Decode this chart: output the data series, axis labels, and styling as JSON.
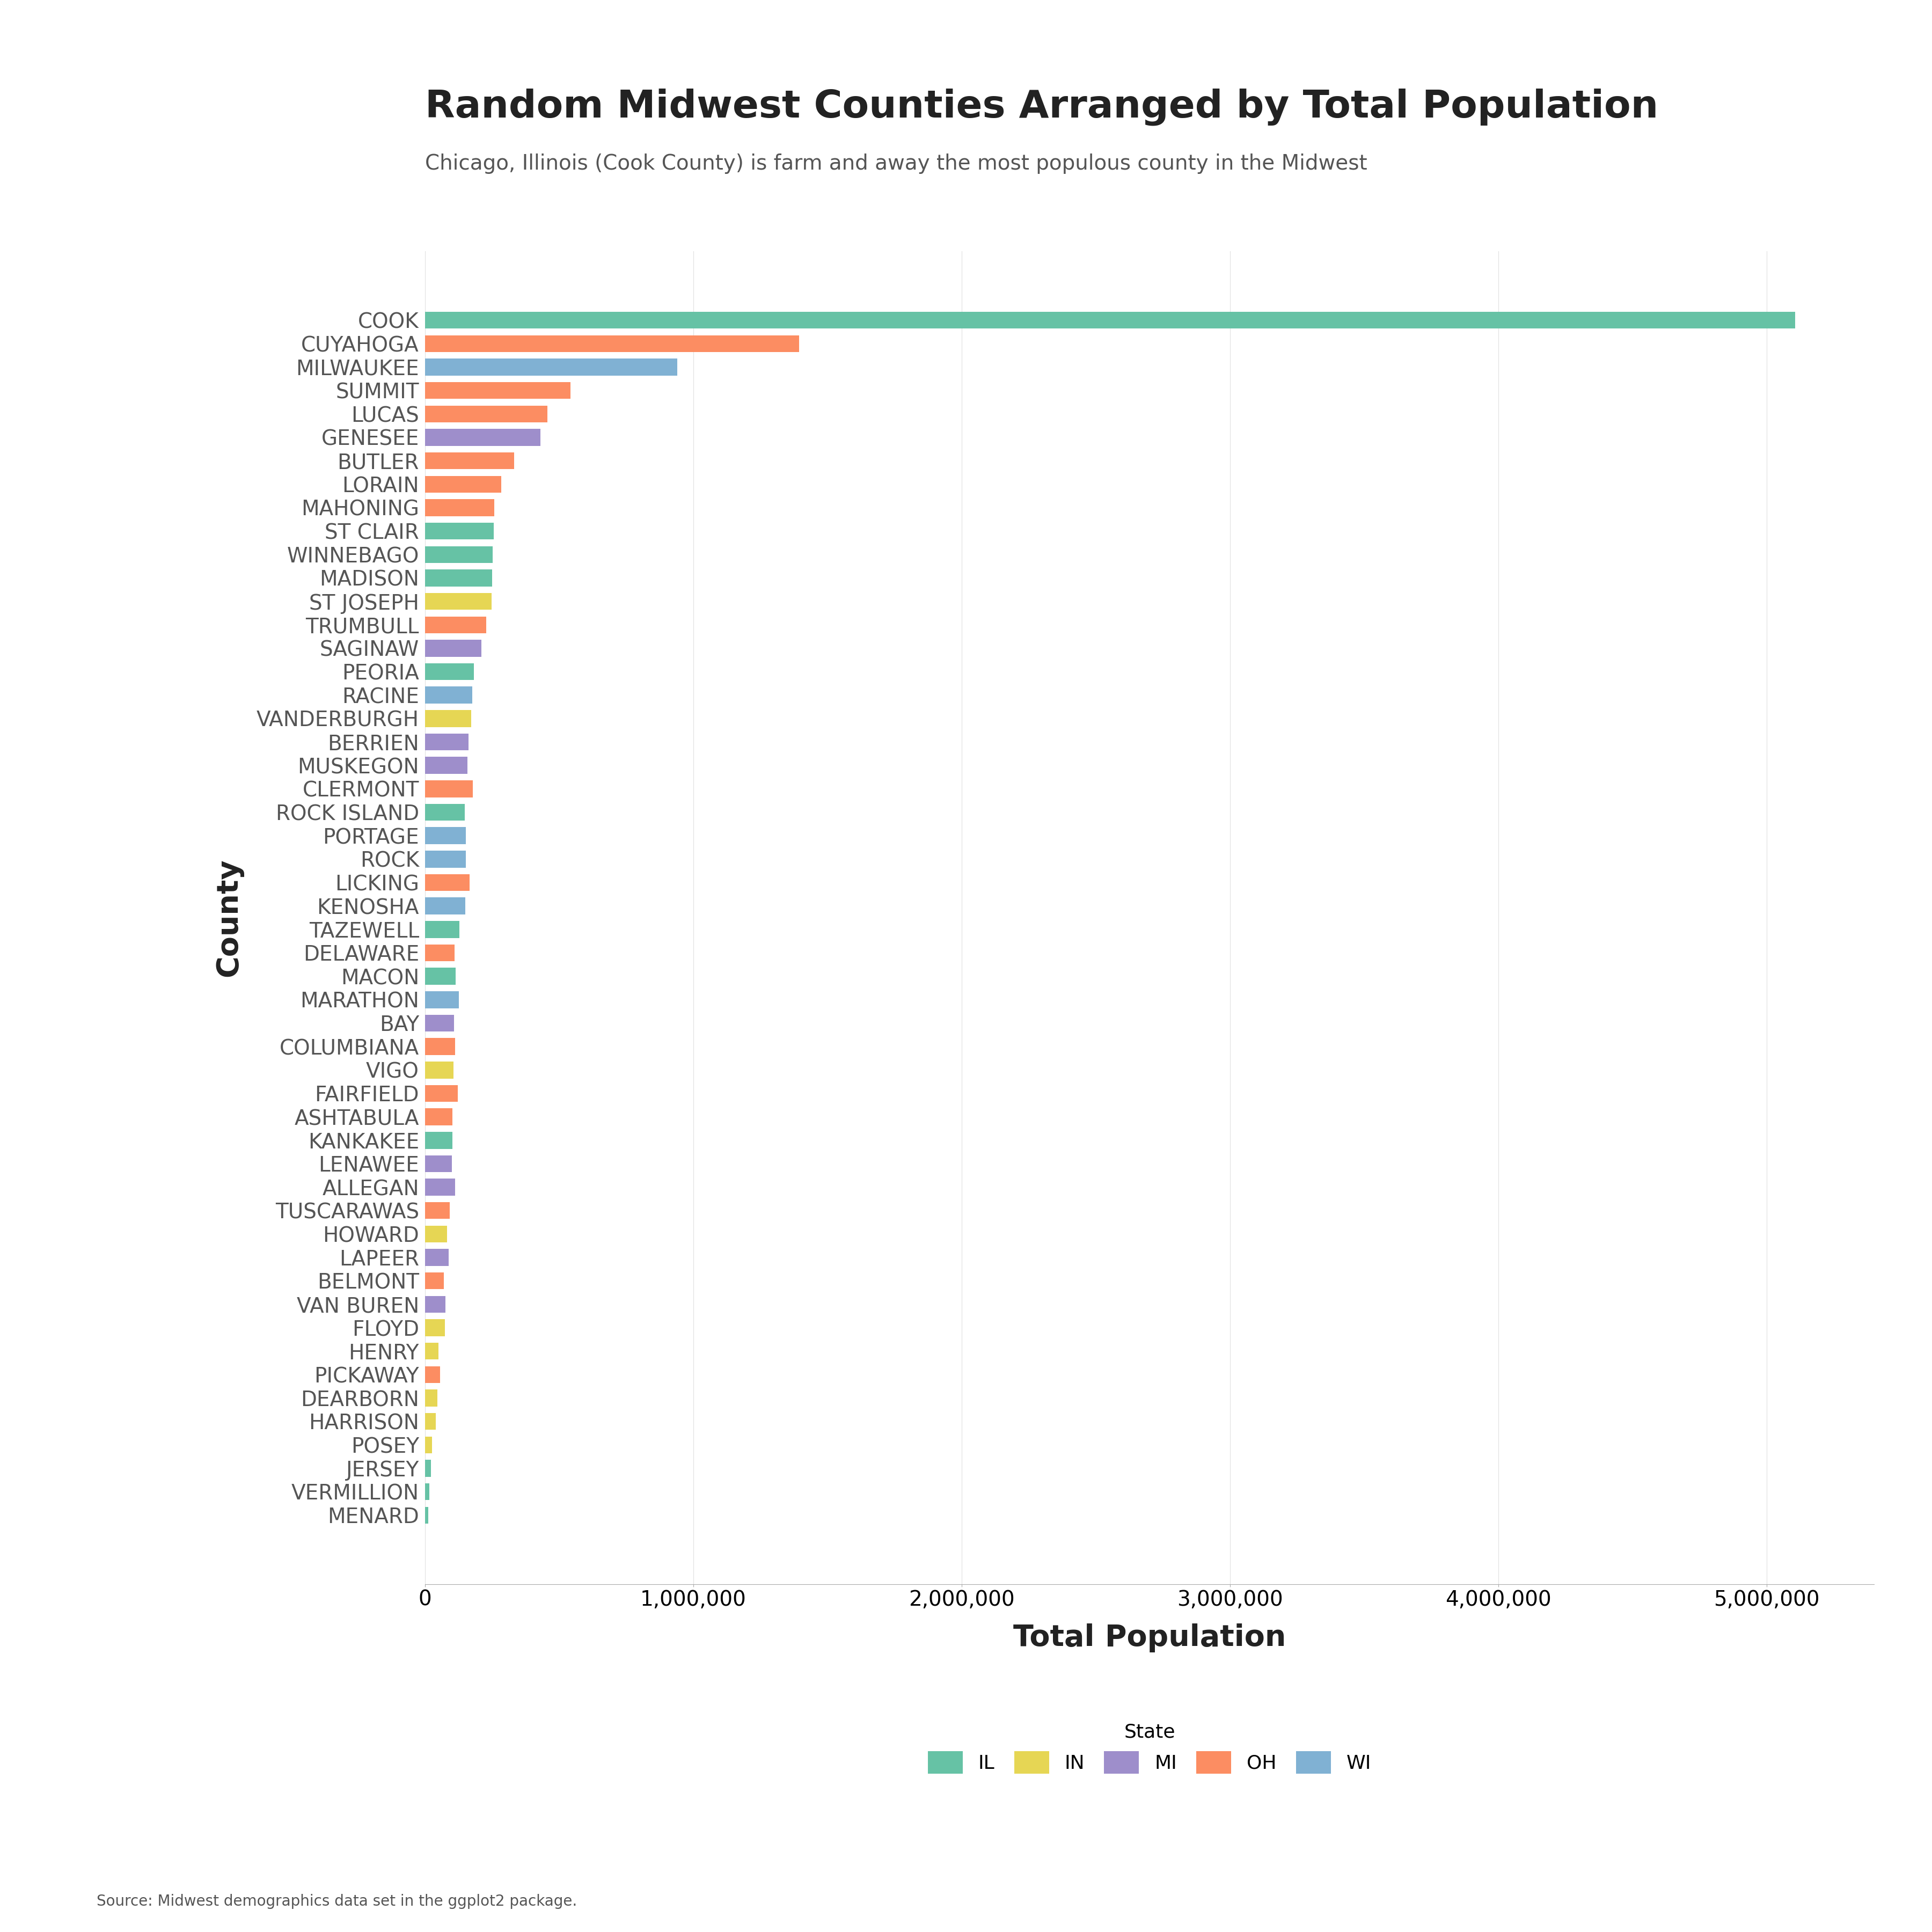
{
  "title": "Random Midwest Counties Arranged by Total Population",
  "subtitle": "Chicago, Illinois (Cook County) is farm and away the most populous county in the Midwest",
  "xlabel": "Total Population",
  "ylabel": "County",
  "source": "Source: Midwest demographics data set in the ggplot2 package.",
  "counties": [
    "COOK",
    "CUYAHOGA",
    "MILWAUKEE",
    "SUMMIT",
    "LUCAS",
    "GENESEE",
    "BUTLER",
    "LORAIN",
    "MAHONING",
    "ST CLAIR",
    "WINNEBAGO",
    "MADISON",
    "ST JOSEPH",
    "TRUMBULL",
    "SAGINAW",
    "PEORIA",
    "RACINE",
    "VANDERBURGH",
    "BERRIEN",
    "MUSKEGON",
    "CLERMONT",
    "ROCK ISLAND",
    "PORTAGE",
    "ROCK",
    "LICKING",
    "KENOSHA",
    "TAZEWELL",
    "DELAWARE",
    "MACON",
    "MARATHON",
    "BAY",
    "COLUMBIANA",
    "VIGO",
    "FAIRFIELD",
    "ASHTABULA",
    "KANKAKEE",
    "LENAWEE",
    "ALLEGAN",
    "TUSCARAWAS",
    "HOWARD",
    "LAPEER",
    "BELMONT",
    "VAN BUREN",
    "FLOYD",
    "HENRY",
    "PICKAWAY",
    "DEARBORN",
    "HARRISON",
    "POSEY",
    "JERSEY",
    "VERMILLION",
    "MENARD"
  ],
  "populations": [
    5105067,
    1393978,
    940164,
    542899,
    455054,
    430459,
    332807,
    284664,
    257555,
    256082,
    252523,
    249238,
    247052,
    227813,
    210039,
    182827,
    175034,
    171922,
    162453,
    157426,
    177977,
    147546,
    152061,
    152307,
    166492,
    149577,
    128485,
    109989,
    114706,
    125834,
    107771,
    112075,
    105848,
    122759,
    101497,
    102926,
    99892,
    111408,
    92582,
    82927,
    87904,
    70226,
    76258,
    74578,
    49710,
    55698,
    46109,
    39155,
    25910,
    22520,
    16357,
    12486
  ],
  "states": [
    "IL",
    "OH",
    "WI",
    "OH",
    "OH",
    "MI",
    "OH",
    "OH",
    "OH",
    "IL",
    "IL",
    "IL",
    "IN",
    "OH",
    "MI",
    "IL",
    "WI",
    "IN",
    "MI",
    "MI",
    "OH",
    "IL",
    "WI",
    "WI",
    "OH",
    "WI",
    "IL",
    "OH",
    "IL",
    "WI",
    "MI",
    "OH",
    "IN",
    "OH",
    "OH",
    "IL",
    "MI",
    "MI",
    "OH",
    "IN",
    "MI",
    "OH",
    "MI",
    "IN",
    "IN",
    "OH",
    "IN",
    "IN",
    "IN",
    "IL",
    "IL",
    "IL"
  ],
  "state_colors": {
    "IL": "#66c2a5",
    "IN": "#e6d654",
    "MI": "#9e8ecb",
    "OH": "#fc8d62",
    "WI": "#80b1d3"
  },
  "legend_labels": [
    "IL",
    "IN",
    "MI",
    "OH",
    "WI"
  ],
  "legend_colors": [
    "#66c2a5",
    "#e6d654",
    "#9e8ecb",
    "#fc8d62",
    "#80b1d3"
  ],
  "background_color": "#ffffff",
  "title_fontsize": 52,
  "subtitle_fontsize": 28,
  "label_fontsize": 26,
  "tick_fontsize": 28,
  "xlabel_fontsize": 40,
  "ylabel_fontsize": 40,
  "source_fontsize": 20,
  "legend_patch_size": 22
}
